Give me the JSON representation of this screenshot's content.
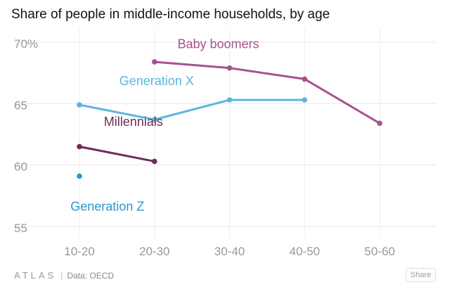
{
  "title": "Share of people in middle-income households, by age",
  "footer": {
    "brand": "ATLAS",
    "source": "Data: OECD",
    "share_label": "Share"
  },
  "chart_data": {
    "type": "line",
    "title": "Share of people in middle-income households, by age",
    "categories": [
      "10-20",
      "20-30",
      "30-40",
      "40-50",
      "50-60"
    ],
    "y_ticks": [
      55,
      60,
      65,
      70
    ],
    "y_tick_labels": [
      "55",
      "60",
      "65",
      "70%"
    ],
    "ylim": [
      53.5,
      71
    ],
    "grid": true,
    "series": [
      {
        "name": "Baby boomers",
        "color": "#a9508e",
        "values": [
          null,
          68.4,
          67.9,
          67.0,
          63.4
        ]
      },
      {
        "name": "Generation X",
        "color": "#5bb6de",
        "values": [
          64.9,
          63.7,
          65.3,
          65.3,
          null
        ]
      },
      {
        "name": "Millennials",
        "color": "#6b2f57",
        "values": [
          61.5,
          60.3,
          null,
          null,
          null
        ]
      },
      {
        "name": "Generation Z",
        "color": "#2b98cc",
        "values": [
          59.1,
          null,
          null,
          null,
          null
        ]
      }
    ]
  }
}
